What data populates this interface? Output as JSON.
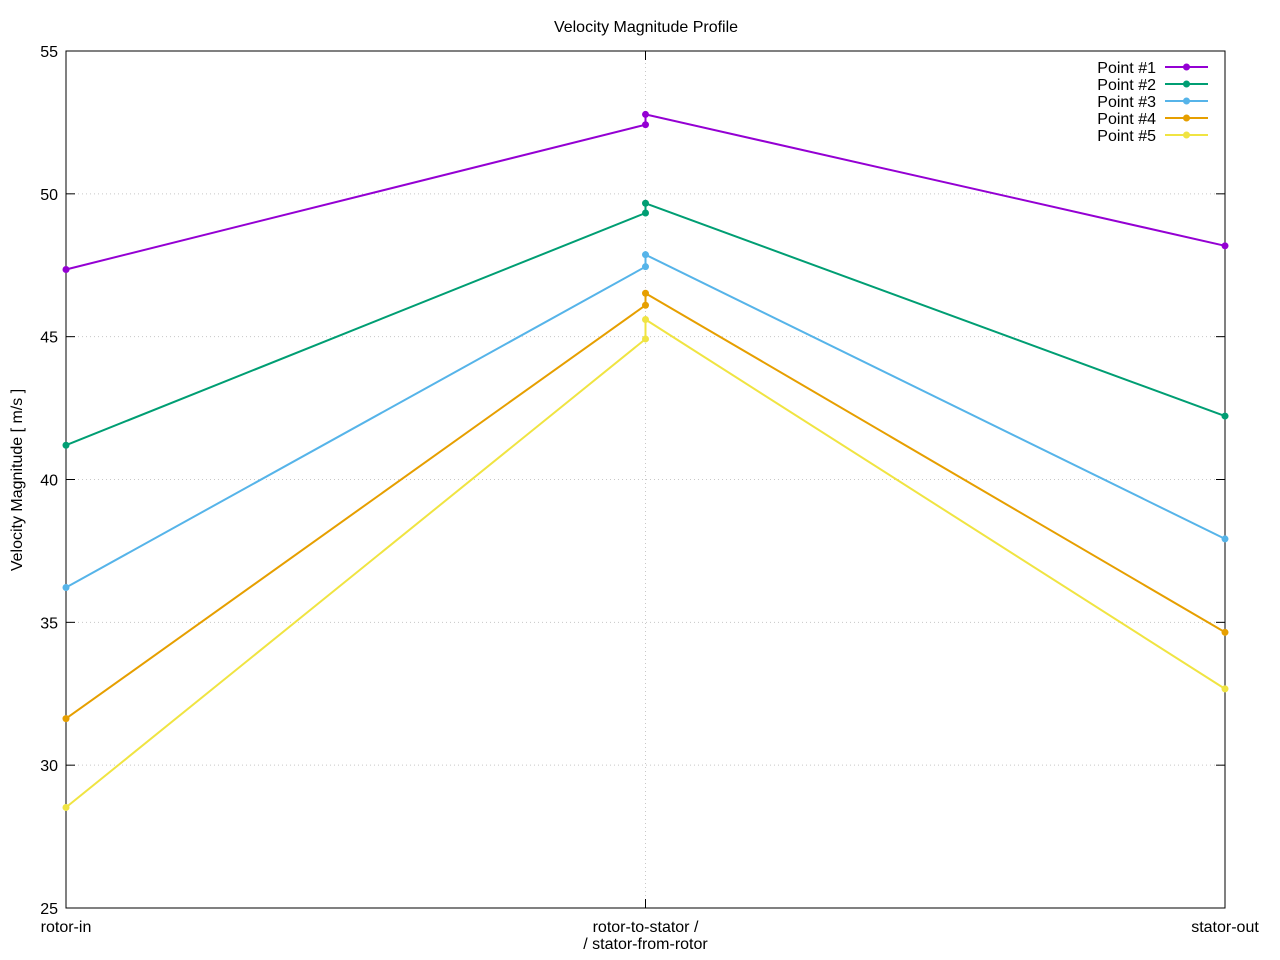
{
  "chart_data": {
    "type": "line",
    "title": "Velocity Magnitude Profile",
    "ylabel": "Velocity Magnitude [ m/s ]",
    "xlabel": "",
    "ylim": [
      25,
      55
    ],
    "y_ticks": [
      25,
      30,
      35,
      40,
      45,
      50,
      55
    ],
    "grid": true,
    "legend_position": "top-right",
    "categories": [
      {
        "lines": [
          "rotor-in"
        ]
      },
      {
        "lines": [
          "rotor-to-stator /",
          "/ stator-from-rotor"
        ]
      },
      {
        "lines": [
          "stator-out"
        ]
      }
    ],
    "series": [
      {
        "name": "Point #1",
        "color": "#9400d3",
        "points": [
          {
            "x": 0,
            "y": 47.35
          },
          {
            "x": 1,
            "y": 52.42
          },
          {
            "x": 1,
            "y": 52.78
          },
          {
            "x": 2,
            "y": 48.18
          }
        ]
      },
      {
        "name": "Point #2",
        "color": "#009e73",
        "points": [
          {
            "x": 0,
            "y": 41.2
          },
          {
            "x": 1,
            "y": 49.33
          },
          {
            "x": 1,
            "y": 49.67
          },
          {
            "x": 2,
            "y": 42.22
          }
        ]
      },
      {
        "name": "Point #3",
        "color": "#56b4e9",
        "points": [
          {
            "x": 0,
            "y": 36.22
          },
          {
            "x": 1,
            "y": 47.45
          },
          {
            "x": 1,
            "y": 47.87
          },
          {
            "x": 2,
            "y": 37.92
          }
        ]
      },
      {
        "name": "Point #4",
        "color": "#e69f00",
        "points": [
          {
            "x": 0,
            "y": 31.63
          },
          {
            "x": 1,
            "y": 46.1
          },
          {
            "x": 1,
            "y": 46.52
          },
          {
            "x": 2,
            "y": 34.65
          }
        ]
      },
      {
        "name": "Point #5",
        "color": "#f0e442",
        "points": [
          {
            "x": 0,
            "y": 28.52
          },
          {
            "x": 1,
            "y": 44.92
          },
          {
            "x": 1,
            "y": 45.6
          },
          {
            "x": 2,
            "y": 32.67
          }
        ]
      }
    ]
  }
}
